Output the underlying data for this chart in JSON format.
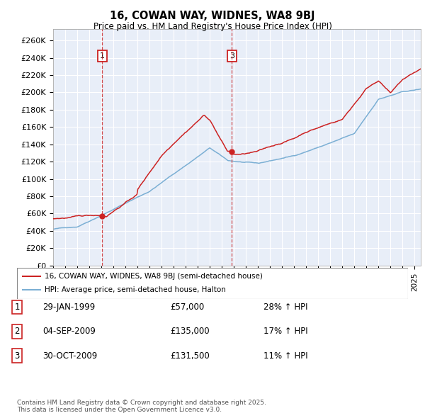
{
  "title1": "16, COWAN WAY, WIDNES, WA8 9BJ",
  "title2": "Price paid vs. HM Land Registry's House Price Index (HPI)",
  "ylabel_ticks": [
    "£0",
    "£20K",
    "£40K",
    "£60K",
    "£80K",
    "£100K",
    "£120K",
    "£140K",
    "£160K",
    "£180K",
    "£200K",
    "£220K",
    "£240K",
    "£260K"
  ],
  "ytick_values": [
    0,
    20000,
    40000,
    60000,
    80000,
    100000,
    120000,
    140000,
    160000,
    180000,
    200000,
    220000,
    240000,
    260000
  ],
  "xlim_start": 1995.0,
  "xlim_end": 2025.5,
  "ylim_min": 0,
  "ylim_max": 273000,
  "sale1_date": 1999.08,
  "sale1_price": 57000,
  "sale2_date": 2009.67,
  "sale2_price": 135000,
  "sale3_date": 2009.83,
  "sale3_price": 131500,
  "red_color": "#cc2222",
  "blue_color": "#7bafd4",
  "chart_bg": "#e8eef8",
  "bg_color": "#ffffff",
  "grid_color": "#ffffff",
  "legend1": "16, COWAN WAY, WIDNES, WA8 9BJ (semi-detached house)",
  "legend2": "HPI: Average price, semi-detached house, Halton",
  "table_data": [
    {
      "num": "1",
      "date": "29-JAN-1999",
      "price": "£57,000",
      "change": "28% ↑ HPI"
    },
    {
      "num": "2",
      "date": "04-SEP-2009",
      "price": "£135,000",
      "change": "17% ↑ HPI"
    },
    {
      "num": "3",
      "date": "30-OCT-2009",
      "price": "£131,500",
      "change": "11% ↑ HPI"
    }
  ],
  "footer": "Contains HM Land Registry data © Crown copyright and database right 2025.\nThis data is licensed under the Open Government Licence v3.0."
}
